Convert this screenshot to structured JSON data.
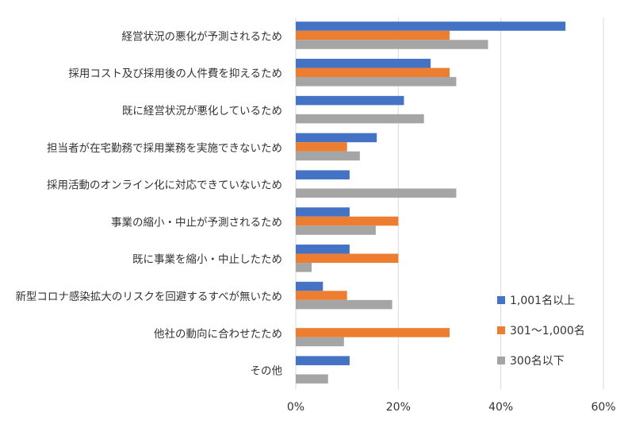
{
  "chart_data": {
    "type": "bar",
    "orientation": "horizontal",
    "categories": [
      "経営状況の悪化が予測されるため",
      "採用コスト及び採用後の人件費を抑えるため",
      "既に経営状況が悪化しているため",
      "担当者が在宅勤務で採用業務を実施できないため",
      "採用活動のオンライン化に対応できていないため",
      "事業の縮小・中止が予測されるため",
      "既に事業を縮小・中止したため",
      "新型コロナ感染拡大のリスクを回避するすべが無いため",
      "他社の動向に合わせたため",
      "その他"
    ],
    "series": [
      {
        "name": "1,001名以上",
        "color": "#4472c4",
        "values": [
          52.6,
          26.3,
          21.1,
          15.8,
          10.5,
          10.5,
          10.5,
          5.3,
          0,
          10.5
        ]
      },
      {
        "name": "301〜1,000名",
        "color": "#ed7d31",
        "values": [
          30,
          30,
          0,
          10,
          0,
          20,
          20,
          10,
          30,
          0
        ]
      },
      {
        "name": "300名以下",
        "color": "#a5a5a5",
        "values": [
          37.5,
          31.3,
          25,
          12.5,
          31.3,
          15.6,
          3.1,
          18.8,
          9.4,
          6.3
        ]
      }
    ],
    "xlim": [
      0,
      60
    ],
    "xticks": [
      "0%",
      "20%",
      "40%",
      "60%"
    ],
    "xtick_values": [
      0,
      20,
      40,
      60
    ],
    "grid": true,
    "legend_position": "bottom-right"
  }
}
